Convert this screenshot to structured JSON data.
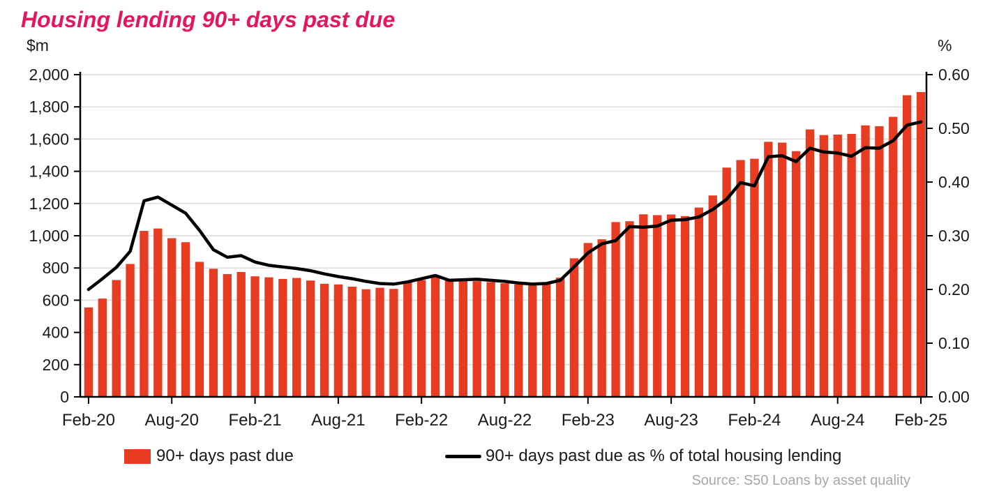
{
  "title": "Housing lending 90+ days past due",
  "title_color": "#e4175e",
  "source": "Source:  S50 Loans by asset quality",
  "legend": {
    "bars_label": "90+ days past due",
    "line_label": "90+ days past due as % of total housing lending"
  },
  "chart_data": {
    "type": "bar+line",
    "title": "Housing lending 90+ days past due",
    "left_axis": {
      "unit": "$m",
      "min": 0,
      "max": 2000,
      "step": 200,
      "tick_labels": [
        "0",
        "200",
        "400",
        "600",
        "800",
        "1,000",
        "1,200",
        "1,400",
        "1,600",
        "1,800",
        "2,000"
      ]
    },
    "right_axis": {
      "unit": "%",
      "min": 0.0,
      "max": 0.6,
      "step": 0.1,
      "tick_labels": [
        "0.00",
        "0.10",
        "0.20",
        "0.30",
        "0.40",
        "0.50",
        "0.60"
      ]
    },
    "x_tick_labels": [
      "Feb-20",
      "Aug-20",
      "Feb-21",
      "Aug-21",
      "Feb-22",
      "Aug-22",
      "Feb-23",
      "Aug-23",
      "Feb-24",
      "Aug-24",
      "Feb-25"
    ],
    "x_tick_month_indices": [
      0,
      6,
      12,
      18,
      24,
      30,
      36,
      42,
      48,
      54,
      60
    ],
    "grid": true,
    "legend_position": "bottom",
    "months": [
      "Feb-20",
      "Mar-20",
      "Apr-20",
      "May-20",
      "Jun-20",
      "Jul-20",
      "Aug-20",
      "Sep-20",
      "Oct-20",
      "Nov-20",
      "Dec-20",
      "Jan-21",
      "Feb-21",
      "Mar-21",
      "Apr-21",
      "May-21",
      "Jun-21",
      "Jul-21",
      "Aug-21",
      "Sep-21",
      "Oct-21",
      "Nov-21",
      "Dec-21",
      "Jan-22",
      "Feb-22",
      "Mar-22",
      "Apr-22",
      "May-22",
      "Jun-22",
      "Jul-22",
      "Aug-22",
      "Sep-22",
      "Oct-22",
      "Nov-22",
      "Dec-22",
      "Jan-23",
      "Feb-23",
      "Mar-23",
      "Apr-23",
      "May-23",
      "Jun-23",
      "Jul-23",
      "Aug-23",
      "Sep-23",
      "Oct-23",
      "Nov-23",
      "Dec-23",
      "Jan-24",
      "Feb-24",
      "Mar-24",
      "Apr-24",
      "May-24",
      "Jun-24",
      "Jul-24",
      "Aug-24",
      "Sep-24",
      "Oct-24",
      "Nov-24",
      "Dec-24",
      "Jan-25",
      "Feb-25"
    ],
    "series": [
      {
        "name": "90+ days past due",
        "type": "bar",
        "axis": "left",
        "color": "#e73b22",
        "values": [
          555,
          610,
          725,
          825,
          1030,
          1045,
          985,
          960,
          838,
          795,
          762,
          775,
          748,
          742,
          732,
          738,
          722,
          702,
          698,
          684,
          668,
          677,
          670,
          715,
          725,
          748,
          730,
          722,
          718,
          712,
          705,
          698,
          695,
          712,
          740,
          860,
          955,
          978,
          1085,
          1090,
          1133,
          1128,
          1132,
          1122,
          1175,
          1250,
          1423,
          1470,
          1478,
          1583,
          1578,
          1525,
          1660,
          1625,
          1628,
          1632,
          1685,
          1680,
          1738,
          1872,
          1892
        ]
      },
      {
        "name": "90+ days past due as % of total housing lending",
        "type": "line",
        "axis": "right",
        "color": "#000000",
        "values": [
          0.2,
          0.22,
          0.241,
          0.271,
          0.365,
          0.372,
          0.357,
          0.342,
          0.31,
          0.274,
          0.26,
          0.263,
          0.251,
          0.245,
          0.242,
          0.239,
          0.235,
          0.229,
          0.224,
          0.22,
          0.215,
          0.211,
          0.21,
          0.214,
          0.22,
          0.226,
          0.217,
          0.218,
          0.219,
          0.217,
          0.215,
          0.212,
          0.21,
          0.211,
          0.217,
          0.242,
          0.268,
          0.285,
          0.291,
          0.317,
          0.316,
          0.318,
          0.329,
          0.33,
          0.335,
          0.349,
          0.368,
          0.399,
          0.393,
          0.447,
          0.449,
          0.438,
          0.463,
          0.456,
          0.454,
          0.448,
          0.464,
          0.463,
          0.477,
          0.506,
          0.512
        ]
      }
    ],
    "colors": {
      "bar": "#e73b22",
      "line": "#000000",
      "gridline": "#dcdcdc",
      "axis": "#000000",
      "title": "#e4175e",
      "source_text": "#a8a8a8"
    }
  }
}
